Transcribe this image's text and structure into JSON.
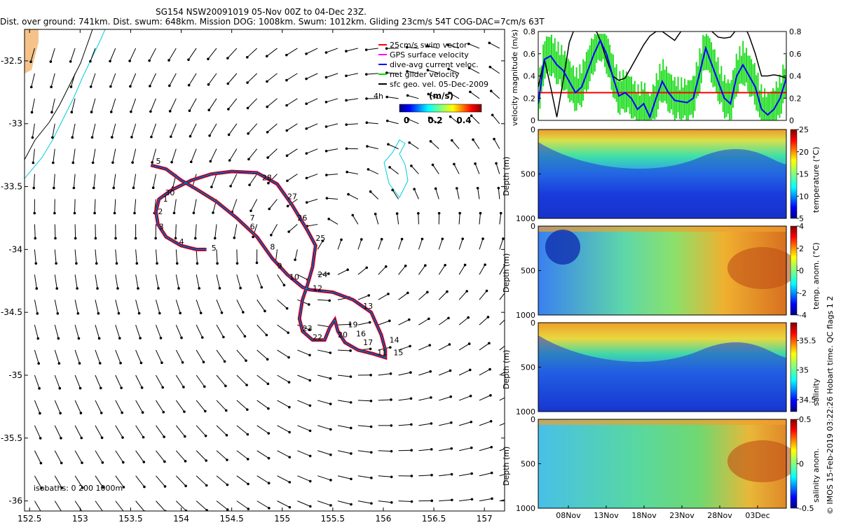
{
  "header": {
    "title": "SG154 NSW20091019 05-Nov 00Z to 04-Dec 23Z.",
    "stats": "Dist. over ground: 741km. Dist. swum: 648km. Mission DOG: 1008km. Swum: 1012km. Gliding 23cm/s 54T COG-DAC=7cm/s 63T"
  },
  "credit": "© IMOS 15-Feb-2019 03:22:26 Hobart time. QC flags 1 2",
  "colors": {
    "swim": "#ff0000",
    "gps": "#ff00ff",
    "dac": "#0000ff",
    "net": "#00dd00",
    "sfc": "#000000",
    "isobath": "#00ccdd",
    "land": "#f5c38a"
  },
  "chart_data": [
    {
      "type": "vector_map",
      "xlim": [
        152.45,
        157.2
      ],
      "ylim": [
        -36.08,
        -32.25
      ],
      "x_ticks": [
        "152.5",
        "153",
        "153.5",
        "154",
        "154.5",
        "155",
        "155.5",
        "156",
        "156.5",
        "157"
      ],
      "y_ticks": [
        "-32.5",
        "-33",
        "-33.5",
        "-34",
        "-34.5",
        "-35",
        "-35.5",
        "-36"
      ],
      "legend": [
        {
          "label": "25cm/s swim vector",
          "color": "#ff0000"
        },
        {
          "label": "GPS surface velocity",
          "color": "#ff00ff"
        },
        {
          "label": "dive-avg current veloc.",
          "color": "#0000ff"
        },
        {
          "label": "net glider velocity",
          "color": "#00dd00"
        },
        {
          "label": "sfc geo. vel. 05-Dec-2009",
          "color": "#000000"
        }
      ],
      "legend_extra": "4h",
      "colorbar_title": "(m/s)",
      "colorbar_ticks": [
        "0",
        "0.2",
        "0.4"
      ],
      "isobath_label": "isobaths: 0   200   1000m",
      "track": [
        [
          153.7,
          -33.33
        ],
        [
          153.85,
          -33.36
        ],
        [
          154.0,
          -33.45
        ],
        [
          154.15,
          -33.52
        ],
        [
          154.35,
          -33.62
        ],
        [
          154.55,
          -33.75
        ],
        [
          154.75,
          -33.9
        ],
        [
          154.9,
          -34.07
        ],
        [
          155.05,
          -34.2
        ],
        [
          155.2,
          -34.3
        ],
        [
          155.27,
          -34.32
        ],
        [
          155.5,
          -34.34
        ],
        [
          155.7,
          -34.4
        ],
        [
          155.88,
          -34.5
        ],
        [
          155.98,
          -34.68
        ],
        [
          156.02,
          -34.8
        ],
        [
          156.02,
          -34.86
        ],
        [
          155.9,
          -34.83
        ],
        [
          155.75,
          -34.8
        ],
        [
          155.62,
          -34.74
        ],
        [
          155.55,
          -34.65
        ],
        [
          155.52,
          -34.56
        ],
        [
          155.47,
          -34.62
        ],
        [
          155.42,
          -34.72
        ],
        [
          155.3,
          -34.72
        ],
        [
          155.2,
          -34.65
        ],
        [
          155.17,
          -34.55
        ],
        [
          155.2,
          -34.4
        ],
        [
          155.25,
          -34.28
        ],
        [
          155.3,
          -34.14
        ],
        [
          155.32,
          -34.02
        ],
        [
          155.33,
          -33.97
        ],
        [
          155.25,
          -33.85
        ],
        [
          155.1,
          -33.65
        ],
        [
          154.95,
          -33.48
        ],
        [
          154.75,
          -33.39
        ],
        [
          154.5,
          -33.38
        ],
        [
          154.3,
          -33.4
        ],
        [
          154.1,
          -33.45
        ],
        [
          153.9,
          -33.53
        ],
        [
          153.78,
          -33.6
        ],
        [
          153.75,
          -33.7
        ],
        [
          153.77,
          -33.8
        ],
        [
          153.85,
          -33.9
        ],
        [
          154.0,
          -33.97
        ],
        [
          154.15,
          -34.0
        ],
        [
          154.25,
          -34.0
        ]
      ],
      "track_labels": [
        {
          "t": "5",
          "lon": 153.75,
          "lat": -33.32
        },
        {
          "t": "30",
          "lon": 153.84,
          "lat": -33.57
        },
        {
          "t": "1",
          "lon": 153.82,
          "lat": -33.62
        },
        {
          "t": "2",
          "lon": 153.77,
          "lat": -33.72
        },
        {
          "t": "3",
          "lon": 153.78,
          "lat": -33.84
        },
        {
          "t": "4",
          "lon": 153.98,
          "lat": -33.96
        },
        {
          "t": "5",
          "lon": 154.3,
          "lat": -34.01
        },
        {
          "t": "6",
          "lon": 154.68,
          "lat": -33.84
        },
        {
          "t": "7",
          "lon": 154.68,
          "lat": -33.77
        },
        {
          "t": "8",
          "lon": 154.88,
          "lat": -34.0
        },
        {
          "t": "9",
          "lon": 154.95,
          "lat": -34.15
        },
        {
          "t": "10",
          "lon": 155.07,
          "lat": -34.24
        },
        {
          "t": "12",
          "lon": 155.3,
          "lat": -34.33
        },
        {
          "t": "24",
          "lon": 155.35,
          "lat": -34.22
        },
        {
          "t": "25",
          "lon": 155.33,
          "lat": -33.93
        },
        {
          "t": "26",
          "lon": 155.15,
          "lat": -33.77
        },
        {
          "t": "27",
          "lon": 155.05,
          "lat": -33.6
        },
        {
          "t": "28",
          "lon": 154.8,
          "lat": -33.45
        },
        {
          "t": "13",
          "lon": 155.8,
          "lat": -34.47
        },
        {
          "t": "14",
          "lon": 156.06,
          "lat": -34.74
        },
        {
          "t": "15",
          "lon": 156.1,
          "lat": -34.84
        },
        {
          "t": "17",
          "lon": 155.8,
          "lat": -34.76
        },
        {
          "t": "19",
          "lon": 155.65,
          "lat": -34.62
        },
        {
          "t": "16",
          "lon": 155.73,
          "lat": -34.69
        },
        {
          "t": "20",
          "lon": 155.55,
          "lat": -34.7
        },
        {
          "t": "22",
          "lon": 155.3,
          "lat": -34.72
        },
        {
          "t": "23",
          "lon": 155.2,
          "lat": -34.65
        },
        {
          "t": "11",
          "lon": 155.94,
          "lat": -34.84
        }
      ]
    },
    {
      "type": "line",
      "ylabel": "velocity magnitude (m/s)",
      "ylim": [
        0,
        0.8
      ],
      "y_ticks": [
        "0",
        "0.2",
        "0.4",
        "0.6",
        "0.8"
      ],
      "swim_line": 0.25,
      "series": [
        {
          "name": "dive-avg current",
          "color": "#0000ff",
          "values": [
            0.15,
            0.55,
            0.58,
            0.5,
            0.45,
            0.35,
            0.25,
            0.3,
            0.45,
            0.6,
            0.72,
            0.6,
            0.4,
            0.22,
            0.25,
            0.2,
            0.1,
            0.15,
            0.03,
            0.2,
            0.35,
            0.25,
            0.18,
            0.17,
            0.16,
            0.2,
            0.42,
            0.65,
            0.5,
            0.35,
            0.2,
            0.15,
            0.4,
            0.5,
            0.4,
            0.3,
            0.1,
            0.05,
            0.1,
            0.2,
            0.38
          ]
        },
        {
          "name": "sfc geo",
          "color": "#000000",
          "values": [
            0.3,
            0.55,
            0.3,
            0.03,
            0.35,
            0.7,
            0.85,
            0.9,
            0.9,
            0.85,
            0.72,
            0.55,
            0.4,
            0.36,
            0.38,
            0.48,
            0.58,
            0.68,
            0.76,
            0.8,
            0.8,
            0.76,
            0.72,
            0.8,
            0.85,
            0.9,
            0.9,
            0.85,
            0.8,
            0.75,
            0.74,
            0.75,
            0.82,
            0.88,
            0.76,
            0.6,
            0.4,
            0.4,
            0.41,
            0.4,
            0.38
          ]
        }
      ]
    },
    {
      "type": "heatmap",
      "ylabel": "Depth (m)",
      "zlabel": "temperature (°C)",
      "ylim": [
        0,
        1000
      ],
      "y_ticks": [
        "0",
        "500",
        "1000"
      ],
      "clim": [
        5,
        25
      ],
      "c_ticks": [
        "5",
        "10",
        "15",
        "20",
        "25"
      ]
    },
    {
      "type": "heatmap",
      "ylabel": "Depth (m)",
      "zlabel": "temp. anom. (°C)",
      "ylim": [
        0,
        1000
      ],
      "y_ticks": [
        "0",
        "500",
        "1000"
      ],
      "clim": [
        -4,
        4
      ],
      "c_ticks": [
        "-4",
        "-2",
        "0",
        "2",
        "4"
      ]
    },
    {
      "type": "heatmap",
      "ylabel": "Depth (m)",
      "zlabel": "salinity",
      "ylim": [
        0,
        1000
      ],
      "y_ticks": [
        "0",
        "500",
        "1000"
      ],
      "clim": [
        34.3,
        35.8
      ],
      "c_ticks": [
        "34.5",
        "35",
        "35.5"
      ]
    },
    {
      "type": "heatmap",
      "ylabel": "Depth (m)",
      "zlabel": "salinity anom.",
      "ylim": [
        0,
        1000
      ],
      "y_ticks": [
        "0",
        "500",
        "1000"
      ],
      "clim": [
        -0.5,
        0.5
      ],
      "c_ticks": [
        "-0.5",
        "0",
        "0.5"
      ],
      "x_ticks": [
        "08Nov",
        "13Nov",
        "18Nov",
        "23Nov",
        "28Nov",
        "03Dec"
      ]
    }
  ]
}
